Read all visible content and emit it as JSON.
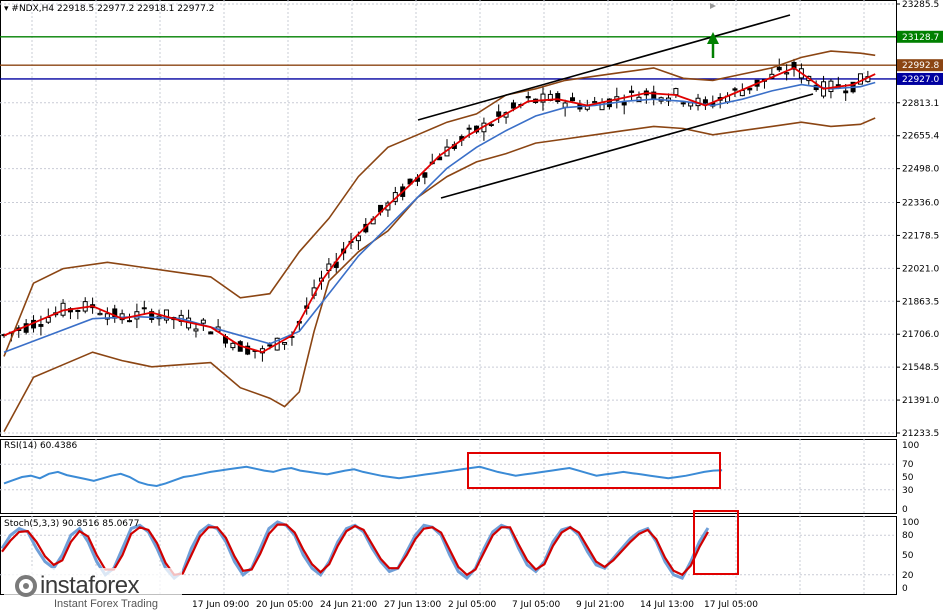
{
  "header": {
    "symbol": "#NDX,H4",
    "ohlc": "22918.5 22977.2 22918.1 22977.2",
    "rsi_label": "RSI(14) 60.4386",
    "stoch_label": "Stoch(5,3,3) 90.8516 85.0677"
  },
  "logo": {
    "name": "instaforex",
    "tagline": "Instant Forex Trading"
  },
  "colors": {
    "background": "#ffffff",
    "grid": "#c9ccd6",
    "candle": "#000000",
    "bollinger": "#8b4513",
    "ma_fast": "#e00000",
    "ma_slow": "#3a6fc8",
    "channel": "#000000",
    "resistance": "#008000",
    "support": "#0000a0",
    "current": "#8b4513",
    "rsi": "#3b8bd6",
    "stoch_main": "#6f9fd8",
    "stoch_signal": "#d00000",
    "highlight": "#e00000",
    "arrow": "#008000"
  },
  "chart_data": {
    "type": "candlestick",
    "instrument": "#NDX",
    "timeframe": "H4",
    "price_axis_ticks": [
      23285.5,
      22813.1,
      22655.4,
      22498.0,
      22336.0,
      22178.5,
      22021.0,
      21863.5,
      21706.0,
      21548.5,
      21391.0,
      21233.5
    ],
    "price_range": [
      21233.5,
      23285.5
    ],
    "price_levels": [
      {
        "label": "23128.7",
        "value": 23128.7,
        "color": "#008000",
        "role": "resistance"
      },
      {
        "label": "22992.8",
        "value": 22992.8,
        "color": "#8b4513",
        "role": "current"
      },
      {
        "label": "22927.0",
        "value": 22927.0,
        "color": "#0000a0",
        "role": "support"
      }
    ],
    "time_labels": [
      "17 Jun 09:00",
      "20 Jun 05:00",
      "24 Jun 21:00",
      "27 Jun 13:00",
      "2 Jul 05:00",
      "7 Jul 05:00",
      "9 Jul 21:00",
      "14 Jul 13:00",
      "17 Jul 05:00"
    ],
    "series": [
      {
        "name": "MA fast",
        "points": [
          [
            0,
            21700
          ],
          [
            4,
            21760
          ],
          [
            8,
            21820
          ],
          [
            12,
            21840
          ],
          [
            16,
            21780
          ],
          [
            20,
            21810
          ],
          [
            24,
            21770
          ],
          [
            28,
            21740
          ],
          [
            32,
            21650
          ],
          [
            35,
            21620
          ],
          [
            39,
            21700
          ],
          [
            43,
            21960
          ],
          [
            47,
            22150
          ],
          [
            51,
            22290
          ],
          [
            55,
            22420
          ],
          [
            59,
            22560
          ],
          [
            63,
            22660
          ],
          [
            67,
            22740
          ],
          [
            71,
            22820
          ],
          [
            75,
            22830
          ],
          [
            79,
            22800
          ],
          [
            83,
            22830
          ],
          [
            87,
            22860
          ],
          [
            91,
            22850
          ],
          [
            95,
            22800
          ],
          [
            99,
            22860
          ],
          [
            103,
            22920
          ],
          [
            107,
            22980
          ],
          [
            111,
            22880
          ],
          [
            115,
            22900
          ],
          [
            118,
            22950
          ]
        ]
      },
      {
        "name": "MA slow",
        "points": [
          [
            0,
            21620
          ],
          [
            6,
            21700
          ],
          [
            12,
            21780
          ],
          [
            18,
            21790
          ],
          [
            24,
            21780
          ],
          [
            30,
            21720
          ],
          [
            36,
            21660
          ],
          [
            40,
            21720
          ],
          [
            44,
            21900
          ],
          [
            48,
            22080
          ],
          [
            52,
            22220
          ],
          [
            56,
            22360
          ],
          [
            60,
            22500
          ],
          [
            64,
            22600
          ],
          [
            68,
            22680
          ],
          [
            72,
            22750
          ],
          [
            76,
            22790
          ],
          [
            80,
            22800
          ],
          [
            84,
            22820
          ],
          [
            88,
            22830
          ],
          [
            92,
            22820
          ],
          [
            96,
            22800
          ],
          [
            100,
            22830
          ],
          [
            104,
            22870
          ],
          [
            108,
            22900
          ],
          [
            112,
            22880
          ],
          [
            116,
            22890
          ],
          [
            118,
            22910
          ]
        ]
      },
      {
        "name": "Bollinger upper",
        "points": [
          [
            0,
            21600
          ],
          [
            4,
            21950
          ],
          [
            8,
            22020
          ],
          [
            14,
            22050
          ],
          [
            18,
            22030
          ],
          [
            24,
            22000
          ],
          [
            28,
            21980
          ],
          [
            32,
            21880
          ],
          [
            36,
            21900
          ],
          [
            40,
            22100
          ],
          [
            44,
            22260
          ],
          [
            48,
            22460
          ],
          [
            52,
            22600
          ],
          [
            56,
            22660
          ],
          [
            60,
            22720
          ],
          [
            64,
            22760
          ],
          [
            68,
            22850
          ],
          [
            72,
            22880
          ],
          [
            76,
            22920
          ],
          [
            80,
            22940
          ],
          [
            84,
            22960
          ],
          [
            88,
            22980
          ],
          [
            92,
            22930
          ],
          [
            96,
            22920
          ],
          [
            100,
            22950
          ],
          [
            104,
            22980
          ],
          [
            108,
            23030
          ],
          [
            112,
            23060
          ],
          [
            116,
            23050
          ],
          [
            118,
            23040
          ]
        ]
      },
      {
        "name": "Bollinger lower",
        "points": [
          [
            0,
            21240
          ],
          [
            4,
            21500
          ],
          [
            8,
            21560
          ],
          [
            12,
            21620
          ],
          [
            16,
            21580
          ],
          [
            20,
            21550
          ],
          [
            24,
            21560
          ],
          [
            28,
            21570
          ],
          [
            32,
            21450
          ],
          [
            36,
            21400
          ],
          [
            38,
            21360
          ],
          [
            40,
            21430
          ],
          [
            42,
            21720
          ],
          [
            44,
            21960
          ],
          [
            48,
            22100
          ],
          [
            52,
            22200
          ],
          [
            56,
            22360
          ],
          [
            60,
            22460
          ],
          [
            64,
            22530
          ],
          [
            68,
            22570
          ],
          [
            72,
            22620
          ],
          [
            76,
            22640
          ],
          [
            80,
            22660
          ],
          [
            84,
            22680
          ],
          [
            88,
            22700
          ],
          [
            92,
            22690
          ],
          [
            96,
            22660
          ],
          [
            100,
            22680
          ],
          [
            104,
            22700
          ],
          [
            108,
            22720
          ],
          [
            112,
            22700
          ],
          [
            116,
            22710
          ],
          [
            118,
            22740
          ]
        ]
      },
      {
        "name": "RSI(14)",
        "range": [
          0,
          100
        ],
        "ticks": [
          100,
          70,
          50,
          30,
          0
        ],
        "values": [
          40,
          45,
          50,
          52,
          48,
          55,
          58,
          53,
          50,
          47,
          44,
          48,
          52,
          55,
          50,
          42,
          38,
          36,
          40,
          45,
          50,
          52,
          55,
          58,
          60,
          62,
          64,
          66,
          63,
          60,
          58,
          62,
          64,
          60,
          58,
          56,
          54,
          57,
          60,
          62,
          58,
          55,
          52,
          50,
          48,
          50,
          52,
          54,
          56,
          58,
          60,
          62,
          64,
          66,
          62,
          58,
          55,
          52,
          54,
          56,
          58,
          60,
          62,
          64,
          60,
          56,
          52,
          54,
          56,
          58,
          56,
          54,
          52,
          50,
          48,
          50,
          52,
          55,
          58,
          60,
          60.4
        ]
      },
      {
        "name": "Stoch main",
        "range": [
          0,
          100
        ],
        "ticks": [
          100,
          80,
          50,
          20,
          0
        ],
        "values": [
          60,
          80,
          90,
          85,
          60,
          40,
          30,
          50,
          80,
          90,
          70,
          40,
          20,
          30,
          60,
          90,
          95,
          85,
          60,
          30,
          15,
          25,
          60,
          85,
          95,
          90,
          70,
          40,
          20,
          30,
          60,
          90,
          100,
          95,
          80,
          50,
          30,
          20,
          40,
          70,
          90,
          95,
          85,
          60,
          40,
          25,
          30,
          55,
          80,
          95,
          92,
          80,
          50,
          25,
          15,
          30,
          60,
          85,
          95,
          90,
          60,
          35,
          25,
          40,
          70,
          88,
          92,
          80,
          55,
          35,
          30,
          45,
          60,
          75,
          85,
          90,
          70,
          40,
          20,
          15,
          40,
          70,
          90.85
        ]
      },
      {
        "name": "Stoch signal",
        "range": [
          0,
          100
        ],
        "values": [
          55,
          72,
          85,
          86,
          70,
          48,
          35,
          42,
          70,
          86,
          78,
          50,
          28,
          28,
          50,
          82,
          92,
          88,
          68,
          38,
          20,
          22,
          50,
          78,
          92,
          92,
          76,
          48,
          26,
          28,
          52,
          82,
          96,
          96,
          84,
          58,
          36,
          24,
          36,
          64,
          86,
          94,
          88,
          66,
          44,
          30,
          30,
          50,
          74,
          90,
          92,
          84,
          58,
          32,
          20,
          28,
          54,
          80,
          92,
          92,
          66,
          42,
          28,
          36,
          64,
          84,
          92,
          84,
          62,
          40,
          32,
          42,
          56,
          70,
          82,
          88,
          74,
          46,
          26,
          20,
          34,
          62,
          85.07
        ]
      }
    ]
  }
}
